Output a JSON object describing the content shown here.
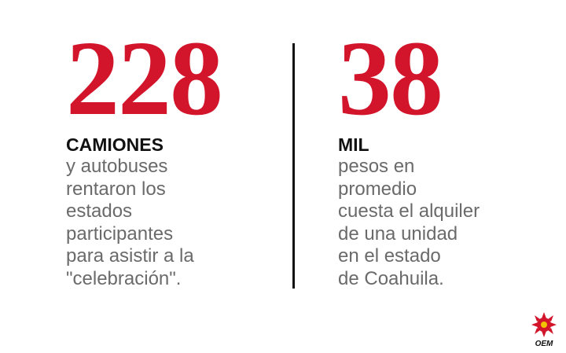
{
  "stats": [
    {
      "number": "228",
      "label": "CAMIONES",
      "lines": [
        "y autobuses",
        "rentaron los",
        "estados",
        "participantes",
        "para asistir a la",
        "\"celebración\"."
      ]
    },
    {
      "number": "38",
      "label": "MIL",
      "lines": [
        "pesos en",
        "promedio",
        "cuesta el alquiler",
        "de una unidad",
        "en el estado",
        "de Coahuila."
      ]
    }
  ],
  "logo": {
    "text": "OEM"
  }
}
